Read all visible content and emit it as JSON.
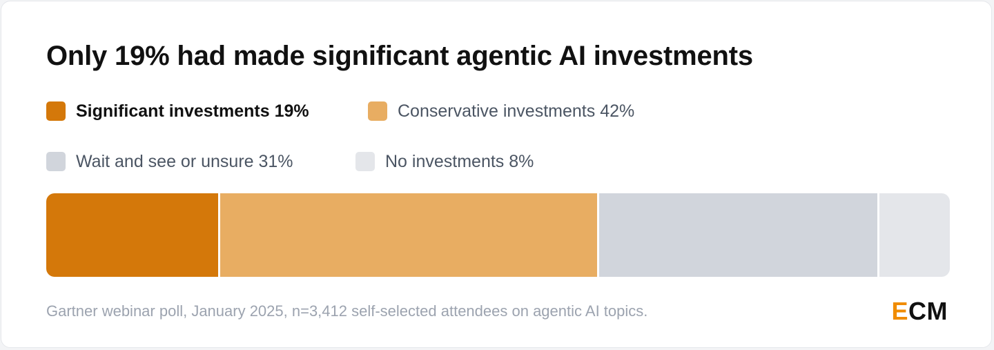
{
  "chart_data": {
    "type": "bar",
    "title": "Only 19% had made significant agentic AI investments",
    "categories": [
      "Significant investments",
      "Conservative investments",
      "Wait and see or unsure",
      "No investments"
    ],
    "values": [
      19,
      42,
      31,
      8
    ],
    "value_labels": [
      "19%",
      "42%",
      "31%",
      "8%"
    ],
    "colors": [
      "#d4780a",
      "#e8ad62",
      "#d1d5dc",
      "#e4e6ea"
    ],
    "stacked": true,
    "orientation": "horizontal",
    "legend_position": "top-left",
    "grid": false
  },
  "footnote": "Gartner webinar poll, January 2025, n=3,412 self-selected attendees on agentic AI topics.",
  "logo": {
    "accent": "E",
    "rest": "CM",
    "accent_color": "#f08c00"
  }
}
